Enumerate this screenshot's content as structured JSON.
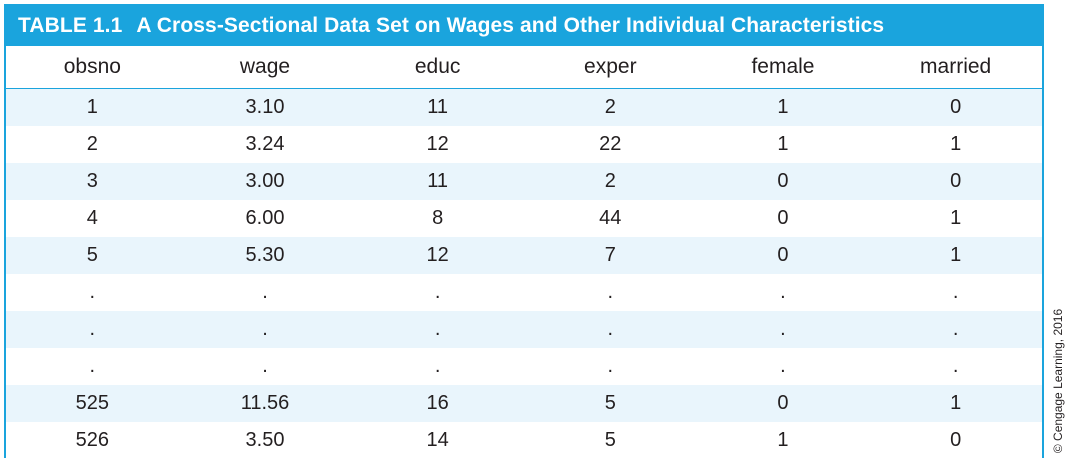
{
  "table": {
    "title_number": "TABLE 1.1",
    "title_text": "A Cross-Sectional Data Set on Wages and Other Individual Characteristics",
    "headers": [
      "obsno",
      "wage",
      "educ",
      "exper",
      "female",
      "married"
    ],
    "rows": [
      [
        "1",
        "3.10",
        "11",
        "2",
        "1",
        "0"
      ],
      [
        "2",
        "3.24",
        "12",
        "22",
        "1",
        "1"
      ],
      [
        "3",
        "3.00",
        "11",
        "2",
        "0",
        "0"
      ],
      [
        "4",
        "6.00",
        "8",
        "44",
        "0",
        "1"
      ],
      [
        "5",
        "5.30",
        "12",
        "7",
        "0",
        "1"
      ],
      [
        ".",
        ".",
        ".",
        ".",
        ".",
        "."
      ],
      [
        ".",
        ".",
        ".",
        ".",
        ".",
        "."
      ],
      [
        ".",
        ".",
        ".",
        ".",
        ".",
        "."
      ],
      [
        "525",
        "11.56",
        "16",
        "5",
        "0",
        "1"
      ],
      [
        "526",
        "3.50",
        "14",
        "5",
        "1",
        "0"
      ]
    ]
  },
  "copyright": "© Cengage Learning, 2016",
  "colors": {
    "accent": "#1aa4dd",
    "row_stripe": "#e9f5fc",
    "text": "#231f20"
  }
}
